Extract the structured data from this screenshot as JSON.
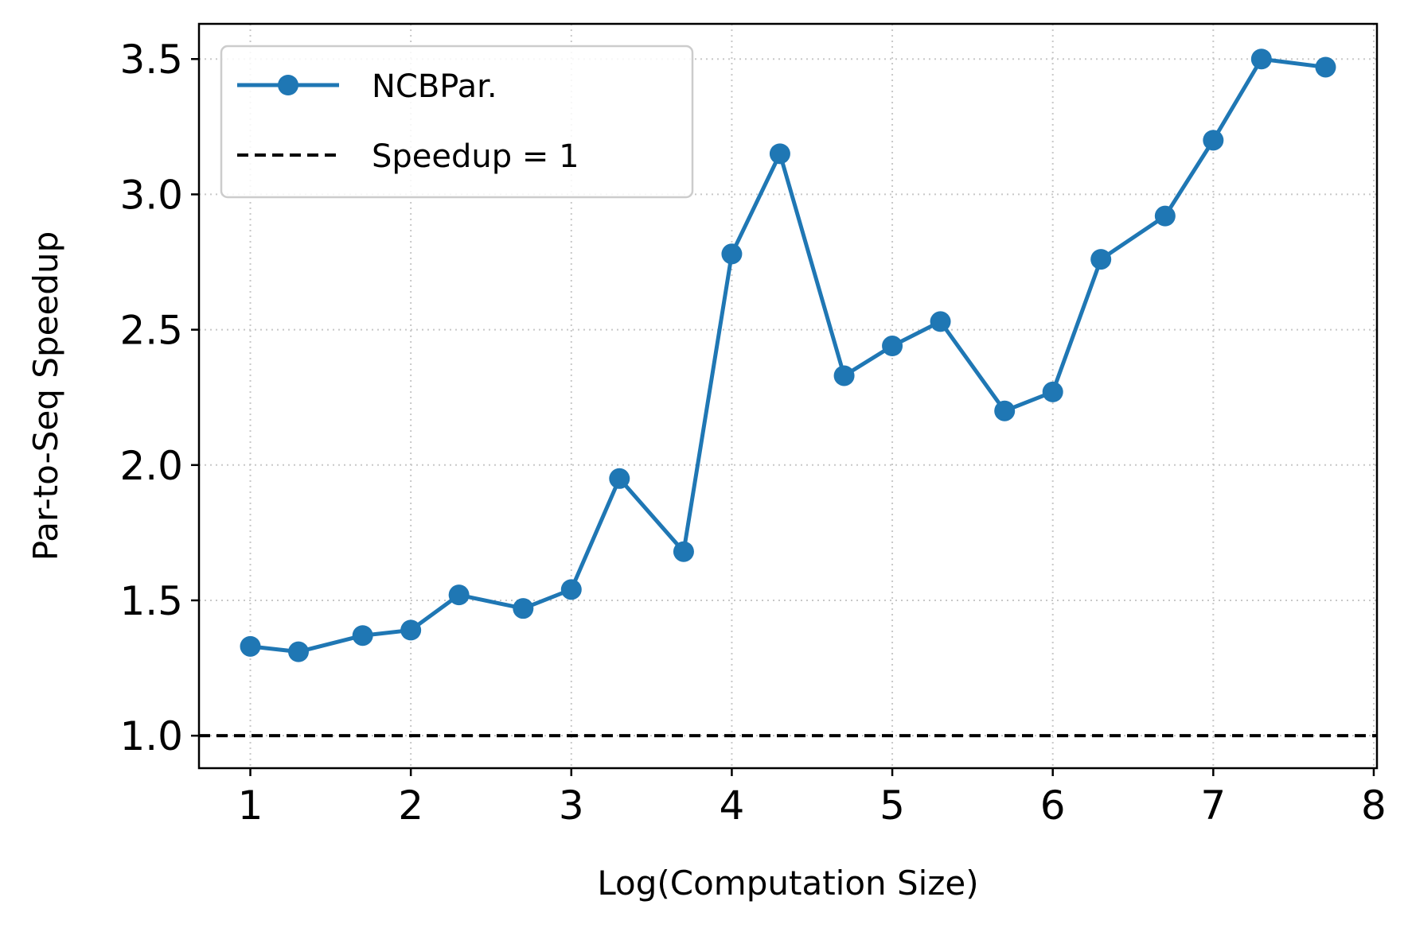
{
  "chart_data": {
    "type": "line",
    "xlabel": "Log(Computation Size)",
    "ylabel": "Par-to-Seq Speedup",
    "xlim": [
      0.68,
      8.02
    ],
    "ylim": [
      0.88,
      3.63
    ],
    "xticks": [
      1,
      2,
      3,
      4,
      5,
      6,
      7,
      8
    ],
    "xtick_labels": [
      "1",
      "2",
      "3",
      "4",
      "5",
      "6",
      "7",
      "8"
    ],
    "yticks": [
      1.0,
      1.5,
      2.0,
      2.5,
      3.0,
      3.5
    ],
    "ytick_labels": [
      "1.0",
      "1.5",
      "2.0",
      "2.5",
      "3.0",
      "3.5"
    ],
    "grid": true,
    "grid_style": "dotted",
    "legend_position": "top-left",
    "series": [
      {
        "name": "NCBPar.",
        "style": "solid line with circle markers",
        "color": "#1f77b4",
        "x": [
          1.0,
          1.3,
          1.7,
          2.0,
          2.3,
          2.7,
          3.0,
          3.3,
          3.7,
          4.0,
          4.3,
          4.7,
          5.0,
          5.3,
          5.7,
          6.0,
          6.3,
          6.7,
          7.0,
          7.3,
          7.7
        ],
        "y": [
          1.33,
          1.31,
          1.37,
          1.39,
          1.52,
          1.47,
          1.54,
          1.95,
          1.68,
          2.78,
          3.15,
          2.33,
          2.44,
          2.53,
          2.2,
          2.27,
          2.76,
          2.92,
          3.2,
          3.5,
          3.47
        ]
      }
    ],
    "reference_lines": [
      {
        "name": "Speedup = 1",
        "y": 1.0,
        "style": "dashed",
        "color": "#000000"
      }
    ]
  }
}
